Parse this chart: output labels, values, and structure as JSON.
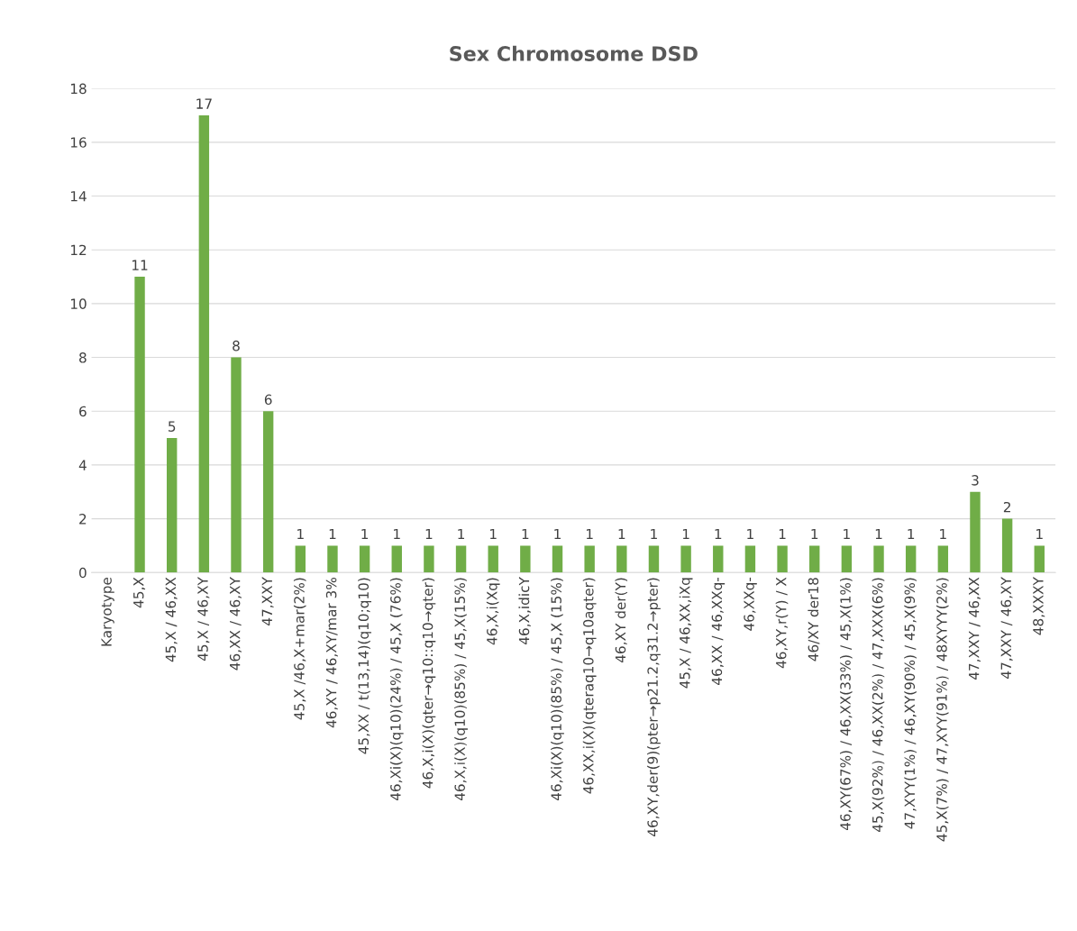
{
  "chart_data": {
    "type": "bar",
    "title": "Sex Chromosome DSD",
    "categories": [
      "Karyotype",
      "45,X",
      "45,X / 46,XX",
      "45,X / 46,XY",
      "46,XX / 46,XY",
      "47,XXY",
      "45,X /46,X+mar(2%)",
      "46,XY / 46,XY/mar 3%",
      "45,XX / t(13,14)(q10;q10)",
      "46,Xi(X)(q10)(24%) / 45,X (76%)",
      "46,X,i(X)(qter→q10::q10→qter)",
      "46,X,i(X)(q10)(85%) / 45,X(15%)",
      "46,X,i(Xq)",
      "46,X,idicY",
      "46,Xi(X)(q10)(85%) / 45,X (15%)",
      "46,XX,i(X)(qteraq10→q10aqter)",
      "46,XY der(Y)",
      "46,XY,der(9)(pter→p21.2,q31.2→pter)",
      "45,X / 46,XX,iXq",
      "46,XX / 46,XXq-",
      "46,XXq-",
      "46,XY,r(Y) / X",
      "46/XY der18",
      "46,XY(67%) / 46,XX(33%) / 45,X(1%)",
      "45,X(92%) / 46,XX(2%) / 47,XXX(6%)",
      "47,XYY(1%) / 46,XY(90%) / 45,X(9%)",
      "45,X(7%) / 47,XYY(91%) / 48XYYY(2%)",
      "47,XXY / 46,XX",
      "47,XXY / 46,XY",
      "48,XXXY"
    ],
    "values": [
      null,
      11,
      5,
      17,
      8,
      6,
      1,
      1,
      1,
      1,
      1,
      1,
      1,
      1,
      1,
      1,
      1,
      1,
      1,
      1,
      1,
      1,
      1,
      1,
      1,
      1,
      1,
      3,
      2,
      1
    ],
    "color": "#70ad47",
    "ylim": [
      0,
      18
    ],
    "yticks": [
      0,
      2,
      4,
      6,
      8,
      10,
      12,
      14,
      16,
      18
    ],
    "grid": "y",
    "data_labels": true
  }
}
